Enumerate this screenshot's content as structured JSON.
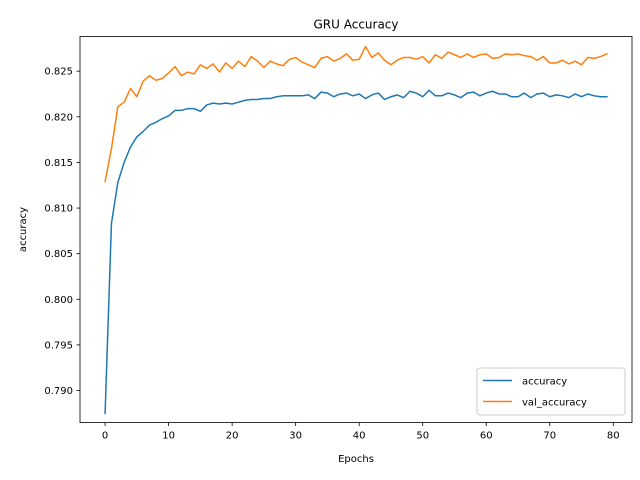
{
  "chart_data": {
    "type": "line",
    "title": "GRU Accuracy",
    "xlabel": "Epochs",
    "ylabel": "accuracy",
    "xlim": [
      -3.95,
      82.95
    ],
    "ylim": [
      0.7865,
      0.8288
    ],
    "xticks": [
      0,
      10,
      20,
      30,
      40,
      50,
      60,
      70,
      80
    ],
    "yticks": [
      0.79,
      0.795,
      0.8,
      0.805,
      0.81,
      0.815,
      0.82,
      0.825
    ],
    "ytick_labels": [
      "0.790",
      "0.795",
      "0.800",
      "0.805",
      "0.810",
      "0.815",
      "0.820",
      "0.825"
    ],
    "grid": false,
    "legend_position": "lower-right",
    "series": [
      {
        "name": "accuracy",
        "color": "#1f77b4",
        "x": [
          0,
          1,
          2,
          3,
          4,
          5,
          6,
          7,
          8,
          9,
          10,
          11,
          12,
          13,
          14,
          15,
          16,
          17,
          18,
          19,
          20,
          21,
          22,
          23,
          24,
          25,
          26,
          27,
          28,
          29,
          30,
          31,
          32,
          33,
          34,
          35,
          36,
          37,
          38,
          39,
          40,
          41,
          42,
          43,
          44,
          45,
          46,
          47,
          48,
          49,
          50,
          51,
          52,
          53,
          54,
          55,
          56,
          57,
          58,
          59,
          60,
          61,
          62,
          63,
          64,
          65,
          66,
          67,
          68,
          69,
          70,
          71,
          72,
          73,
          74,
          75,
          76,
          77,
          78,
          79
        ],
        "values": [
          0.7875,
          0.8083,
          0.8128,
          0.815,
          0.8167,
          0.8178,
          0.8184,
          0.8191,
          0.8194,
          0.8198,
          0.8201,
          0.8207,
          0.8207,
          0.8209,
          0.8209,
          0.8206,
          0.8213,
          0.8215,
          0.8214,
          0.8215,
          0.8214,
          0.8216,
          0.8218,
          0.8219,
          0.8219,
          0.822,
          0.822,
          0.8222,
          0.8223,
          0.8223,
          0.8223,
          0.8223,
          0.8224,
          0.822,
          0.8227,
          0.8226,
          0.8222,
          0.8225,
          0.8226,
          0.8223,
          0.8225,
          0.822,
          0.8224,
          0.8226,
          0.8219,
          0.8222,
          0.8224,
          0.8221,
          0.8228,
          0.8226,
          0.8222,
          0.8229,
          0.8223,
          0.8223,
          0.8226,
          0.8224,
          0.8221,
          0.8226,
          0.8227,
          0.8223,
          0.8226,
          0.8228,
          0.8225,
          0.8225,
          0.8222,
          0.8222,
          0.8226,
          0.8221,
          0.8225,
          0.8226,
          0.8222,
          0.8224,
          0.8223,
          0.8221,
          0.8225,
          0.8222,
          0.8225,
          0.8223,
          0.8222,
          0.8222
        ]
      },
      {
        "name": "val_accuracy",
        "color": "#ff7f0e",
        "x": [
          0,
          1,
          2,
          3,
          4,
          5,
          6,
          7,
          8,
          9,
          10,
          11,
          12,
          13,
          14,
          15,
          16,
          17,
          18,
          19,
          20,
          21,
          22,
          23,
          24,
          25,
          26,
          27,
          28,
          29,
          30,
          31,
          32,
          33,
          34,
          35,
          36,
          37,
          38,
          39,
          40,
          41,
          42,
          43,
          44,
          45,
          46,
          47,
          48,
          49,
          50,
          51,
          52,
          53,
          54,
          55,
          56,
          57,
          58,
          59,
          60,
          61,
          62,
          63,
          64,
          65,
          66,
          67,
          68,
          69,
          70,
          71,
          72,
          73,
          74,
          75,
          76,
          77,
          78,
          79
        ],
        "values": [
          0.8129,
          0.8165,
          0.8211,
          0.8216,
          0.8231,
          0.8222,
          0.8239,
          0.8245,
          0.824,
          0.8242,
          0.8248,
          0.8255,
          0.8245,
          0.8249,
          0.8247,
          0.8257,
          0.8253,
          0.8258,
          0.8249,
          0.8259,
          0.8253,
          0.8261,
          0.8255,
          0.8266,
          0.8261,
          0.8254,
          0.8261,
          0.8258,
          0.8256,
          0.8263,
          0.8265,
          0.826,
          0.8257,
          0.8254,
          0.8264,
          0.8266,
          0.8261,
          0.8264,
          0.8269,
          0.8262,
          0.8263,
          0.8277,
          0.8265,
          0.827,
          0.8262,
          0.8257,
          0.8262,
          0.8265,
          0.8265,
          0.8263,
          0.8266,
          0.8259,
          0.8268,
          0.8264,
          0.8271,
          0.8268,
          0.8265,
          0.8269,
          0.8265,
          0.8268,
          0.8269,
          0.8264,
          0.8265,
          0.8269,
          0.8268,
          0.8269,
          0.8267,
          0.8266,
          0.8262,
          0.8266,
          0.8259,
          0.8259,
          0.8262,
          0.8258,
          0.8261,
          0.8257,
          0.8265,
          0.8264,
          0.8266,
          0.8269
        ]
      }
    ]
  }
}
